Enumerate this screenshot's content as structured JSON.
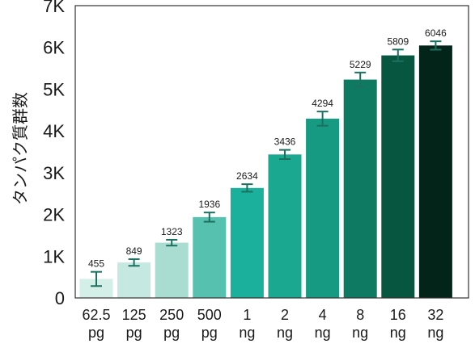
{
  "chart_data": {
    "type": "bar",
    "categories": [
      [
        "62.5",
        "pg"
      ],
      [
        "125",
        "pg"
      ],
      [
        "250",
        "pg"
      ],
      [
        "500",
        "pg"
      ],
      [
        "1",
        "ng"
      ],
      [
        "2",
        "ng"
      ],
      [
        "4",
        "ng"
      ],
      [
        "8",
        "ng"
      ],
      [
        "16",
        "ng"
      ],
      [
        "32",
        "ng"
      ]
    ],
    "values": [
      455,
      849,
      1323,
      1936,
      2634,
      3436,
      4294,
      5229,
      5809,
      6046
    ],
    "data_labels": [
      "455",
      "849",
      "1323",
      "1936",
      "2634",
      "3436",
      "4294",
      "5229",
      "5809",
      "6046"
    ],
    "error": [
      170,
      80,
      70,
      110,
      90,
      110,
      170,
      170,
      140,
      100
    ],
    "ylabel": "タンパク質群数",
    "ylim": [
      0,
      7000
    ],
    "yticks": [
      0,
      1000,
      2000,
      3000,
      4000,
      5000,
      6000,
      7000
    ],
    "ytick_labels": [
      "0",
      "1K",
      "2K",
      "3K",
      "4K",
      "5K",
      "6K",
      "7K"
    ],
    "bar_colors": [
      "#d4eee8",
      "#c5e8e0",
      "#a9ddd2",
      "#55c1ae",
      "#1bb09b",
      "#1aa891",
      "#179a82",
      "#0e7a62",
      "#07563f",
      "#032418"
    ],
    "error_color": "#1b7060",
    "grid": false
  }
}
